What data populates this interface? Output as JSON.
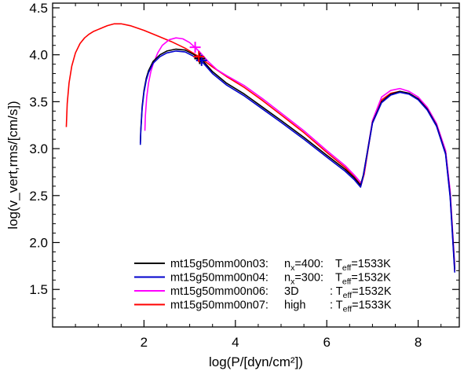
{
  "chart_data": {
    "type": "line",
    "xlabel": "log(P/[dyn/cm²])",
    "ylabel": "log(v_vert,rms/[cm/s])",
    "xlim": [
      0.0,
      8.9
    ],
    "ylim": [
      1.1,
      4.55
    ],
    "x_ticks": [
      2,
      4,
      6,
      8
    ],
    "y_ticks": [
      1.5,
      2.0,
      2.5,
      3.0,
      3.5,
      4.0,
      4.5
    ],
    "x_tick_labels": [
      "2",
      "4",
      "6",
      "8"
    ],
    "y_tick_labels": [
      "1.5",
      "2.0",
      "2.5",
      "3.0",
      "3.5",
      "4.0",
      "4.5"
    ],
    "legend_position": "bottom-center",
    "series": [
      {
        "name": "mt15g50mm00n03",
        "label_parts": {
          "model": "mt15g50mm00n03:",
          "grid_a": "n",
          "grid_sub": "x",
          "grid_b": "=400:",
          "teff_a": "T",
          "teff_sub": "eff",
          "teff_b": "=1533K"
        },
        "color": "#000000",
        "x": [
          1.92,
          1.93,
          1.96,
          2.0,
          2.05,
          2.1,
          2.2,
          2.35,
          2.5,
          2.7,
          2.9,
          3.1,
          3.3,
          3.5,
          3.8,
          4.2,
          4.6,
          5.0,
          5.5,
          6.0,
          6.4,
          6.6,
          6.74,
          6.8,
          6.9,
          7.0,
          7.2,
          7.4,
          7.6,
          7.8,
          8.0,
          8.2,
          8.4,
          8.6,
          8.7,
          8.8
        ],
        "y": [
          3.06,
          3.2,
          3.45,
          3.62,
          3.75,
          3.83,
          3.93,
          4.0,
          4.04,
          4.06,
          4.05,
          4.0,
          3.93,
          3.82,
          3.7,
          3.58,
          3.44,
          3.3,
          3.12,
          2.93,
          2.78,
          2.69,
          2.61,
          2.72,
          3.0,
          3.28,
          3.5,
          3.58,
          3.61,
          3.59,
          3.53,
          3.42,
          3.25,
          2.95,
          2.5,
          1.72
        ]
      },
      {
        "name": "mt15g50mm00n04",
        "label_parts": {
          "model": "mt15g50mm00n04:",
          "grid_a": "n",
          "grid_sub": "x",
          "grid_b": "=300:",
          "teff_a": "T",
          "teff_sub": "eff",
          "teff_b": "=1532K"
        },
        "color": "#0000cc",
        "x": [
          1.92,
          1.93,
          1.96,
          2.0,
          2.05,
          2.1,
          2.2,
          2.35,
          2.5,
          2.7,
          2.9,
          3.1,
          3.3,
          3.5,
          3.8,
          4.2,
          4.6,
          5.0,
          5.5,
          6.0,
          6.4,
          6.6,
          6.74,
          6.8,
          6.9,
          7.0,
          7.2,
          7.4,
          7.6,
          7.8,
          8.0,
          8.2,
          8.4,
          8.6,
          8.7,
          8.8
        ],
        "y": [
          3.04,
          3.18,
          3.43,
          3.6,
          3.73,
          3.81,
          3.91,
          3.98,
          4.02,
          4.04,
          4.03,
          3.98,
          3.91,
          3.8,
          3.68,
          3.56,
          3.42,
          3.28,
          3.1,
          2.91,
          2.76,
          2.67,
          2.59,
          2.71,
          2.99,
          3.27,
          3.49,
          3.57,
          3.6,
          3.58,
          3.52,
          3.41,
          3.24,
          2.94,
          2.48,
          1.68
        ]
      },
      {
        "name": "mt15g50mm00n06",
        "label_parts": {
          "model": "mt15g50mm00n06:",
          "grid_a": "3D",
          "grid_sub": "",
          "grid_b": "",
          "teff_a": ": T",
          "teff_sub": "eff",
          "teff_b": "=1532K"
        },
        "color": "#ff00ff",
        "x": [
          2.02,
          2.03,
          2.06,
          2.1,
          2.15,
          2.2,
          2.3,
          2.4,
          2.55,
          2.7,
          2.85,
          3.0,
          3.2,
          3.4,
          3.6,
          3.8,
          4.2,
          4.6,
          5.0,
          5.5,
          6.0,
          6.4,
          6.6,
          6.76,
          6.82,
          6.9,
          7.0,
          7.2,
          7.4,
          7.6,
          7.8,
          8.0,
          8.2,
          8.4,
          8.6,
          8.7,
          8.8
        ],
        "y": [
          3.19,
          3.35,
          3.55,
          3.7,
          3.82,
          3.9,
          4.02,
          4.1,
          4.16,
          4.18,
          4.17,
          4.13,
          4.04,
          3.93,
          3.84,
          3.78,
          3.67,
          3.53,
          3.38,
          3.19,
          2.98,
          2.82,
          2.72,
          2.63,
          2.75,
          3.0,
          3.3,
          3.55,
          3.62,
          3.64,
          3.61,
          3.55,
          3.44,
          3.27,
          2.98,
          2.55,
          1.75
        ]
      },
      {
        "name": "mt15g50mm00n07",
        "label_parts": {
          "model": "mt15g50mm00n07:",
          "grid_a": "high",
          "grid_sub": "",
          "grid_b": "",
          "teff_a": ": T",
          "teff_sub": "eff",
          "teff_b": "=1533K"
        },
        "color": "#ff0000",
        "x": [
          0.3,
          0.32,
          0.36,
          0.42,
          0.5,
          0.6,
          0.7,
          0.8,
          0.9,
          1.0,
          1.1,
          1.2,
          1.35,
          1.5,
          1.7,
          2.0,
          2.3,
          2.6,
          2.9,
          3.2,
          3.5,
          3.8,
          4.2,
          4.6,
          5.0,
          5.5,
          6.0,
          6.4,
          6.6,
          6.75,
          6.82,
          6.9,
          7.0,
          7.2,
          7.4,
          7.6,
          7.8,
          8.0,
          8.2,
          8.4,
          8.6,
          8.7,
          8.8
        ],
        "y": [
          3.23,
          3.48,
          3.7,
          3.88,
          4.02,
          4.12,
          4.18,
          4.22,
          4.25,
          4.27,
          4.29,
          4.31,
          4.33,
          4.33,
          4.31,
          4.26,
          4.2,
          4.14,
          4.07,
          3.98,
          3.87,
          3.77,
          3.65,
          3.51,
          3.36,
          3.17,
          2.96,
          2.8,
          2.7,
          2.61,
          2.73,
          2.98,
          3.28,
          3.52,
          3.59,
          3.61,
          3.59,
          3.53,
          3.43,
          3.26,
          2.97,
          2.52,
          1.7
        ]
      }
    ],
    "markers": [
      {
        "series": "mt15g50mm00n03",
        "symbol": "plus",
        "color": "#000000",
        "x": 3.22,
        "y": 3.96
      },
      {
        "series": "mt15g50mm00n04",
        "symbol": "plus",
        "color": "#0000cc",
        "x": 3.26,
        "y": 3.94
      },
      {
        "series": "mt15g50mm00n06",
        "symbol": "plus",
        "color": "#ff00ff",
        "x": 3.12,
        "y": 4.08
      },
      {
        "series": "mt15g50mm00n07",
        "symbol": "plus",
        "color": "#ff0000",
        "x": 3.2,
        "y": 3.98
      }
    ]
  }
}
